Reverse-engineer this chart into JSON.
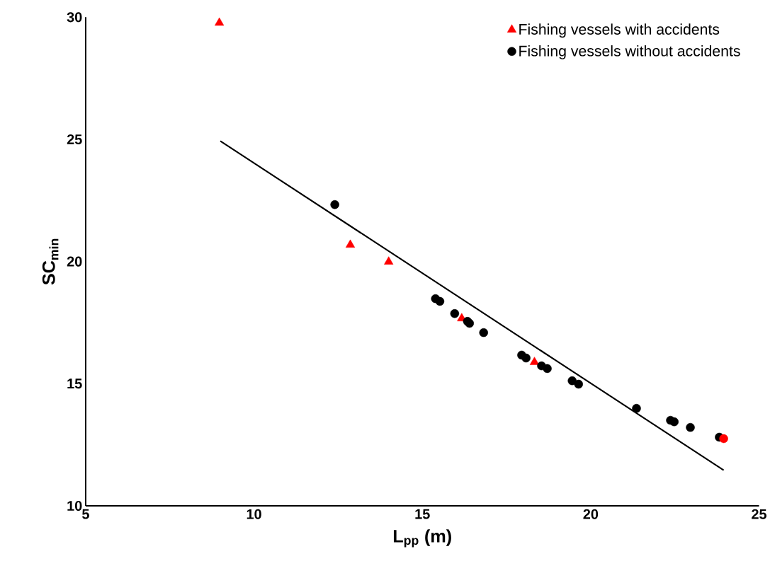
{
  "chart_data": {
    "type": "scatter",
    "xlabel": "L$_{pp}$ (m)",
    "ylabel": "SC$_{min}$",
    "xlim": [
      5,
      25
    ],
    "ylim": [
      10,
      30
    ],
    "xticks": [
      5,
      10,
      15,
      20,
      25
    ],
    "yticks": [
      10,
      15,
      20,
      25,
      30
    ],
    "grid": false,
    "legend": "top right",
    "series": [
      {
        "name": "Fishing vessels with accidents",
        "color": "#ff0000",
        "marker": "triangle",
        "x": [
          8.97,
          12.86,
          14.0,
          16.17,
          18.33
        ],
        "values": [
          29.77,
          20.68,
          19.99,
          17.67,
          15.88
        ]
      },
      {
        "name": "Fishing vessels without accidents",
        "color": "#000000",
        "marker": "circle",
        "x": [
          12.4,
          15.39,
          15.52,
          15.96,
          16.34,
          16.4,
          16.82,
          17.95,
          18.08,
          18.54,
          18.71,
          19.45,
          19.64,
          21.36,
          22.37,
          22.48,
          22.96,
          23.82
        ],
        "values": [
          22.33,
          18.48,
          18.37,
          17.87,
          17.55,
          17.47,
          17.09,
          16.17,
          16.05,
          15.73,
          15.62,
          15.12,
          14.98,
          13.99,
          13.5,
          13.44,
          13.21,
          12.81
        ]
      },
      {
        "color": "#ff0000",
        "marker": "circle",
        "x": [
          23.95
        ],
        "values": [
          12.75
        ]
      },
      {
        "type": "line",
        "color": "#000000",
        "marker": "none",
        "line_style": "solid",
        "x": [
          9.0,
          23.95
        ],
        "values": [
          24.93,
          11.46
        ]
      }
    ]
  }
}
